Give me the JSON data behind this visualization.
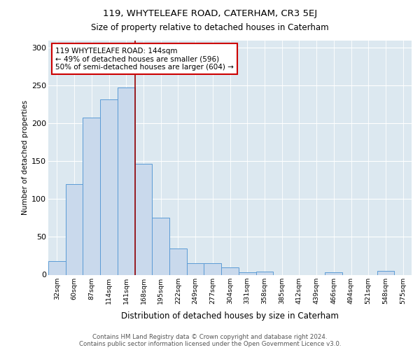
{
  "title1": "119, WHYTELEAFE ROAD, CATERHAM, CR3 5EJ",
  "title2": "Size of property relative to detached houses in Caterham",
  "xlabel": "Distribution of detached houses by size in Caterham",
  "ylabel": "Number of detached properties",
  "categories": [
    "32sqm",
    "60sqm",
    "87sqm",
    "114sqm",
    "141sqm",
    "168sqm",
    "195sqm",
    "222sqm",
    "249sqm",
    "277sqm",
    "304sqm",
    "331sqm",
    "358sqm",
    "385sqm",
    "412sqm",
    "439sqm",
    "466sqm",
    "494sqm",
    "521sqm",
    "548sqm",
    "575sqm"
  ],
  "values": [
    18,
    120,
    208,
    232,
    248,
    147,
    75,
    35,
    15,
    15,
    10,
    3,
    4,
    0,
    0,
    0,
    3,
    0,
    0,
    5,
    0
  ],
  "bar_color": "#c9d9ec",
  "bar_edge_color": "#5b9bd5",
  "bg_color": "#dce8f0",
  "grid_color": "#ffffff",
  "vline_color": "#990000",
  "annotation_text": "119 WHYTELEAFE ROAD: 144sqm\n← 49% of detached houses are smaller (596)\n50% of semi-detached houses are larger (604) →",
  "annotation_box_color": "#ffffff",
  "annotation_box_edge": "#cc0000",
  "footer1": "Contains HM Land Registry data © Crown copyright and database right 2024.",
  "footer2": "Contains public sector information licensed under the Open Government Licence v3.0.",
  "ylim": [
    0,
    310
  ],
  "yticks": [
    0,
    50,
    100,
    150,
    200,
    250,
    300
  ],
  "vline_pos": 4.5
}
